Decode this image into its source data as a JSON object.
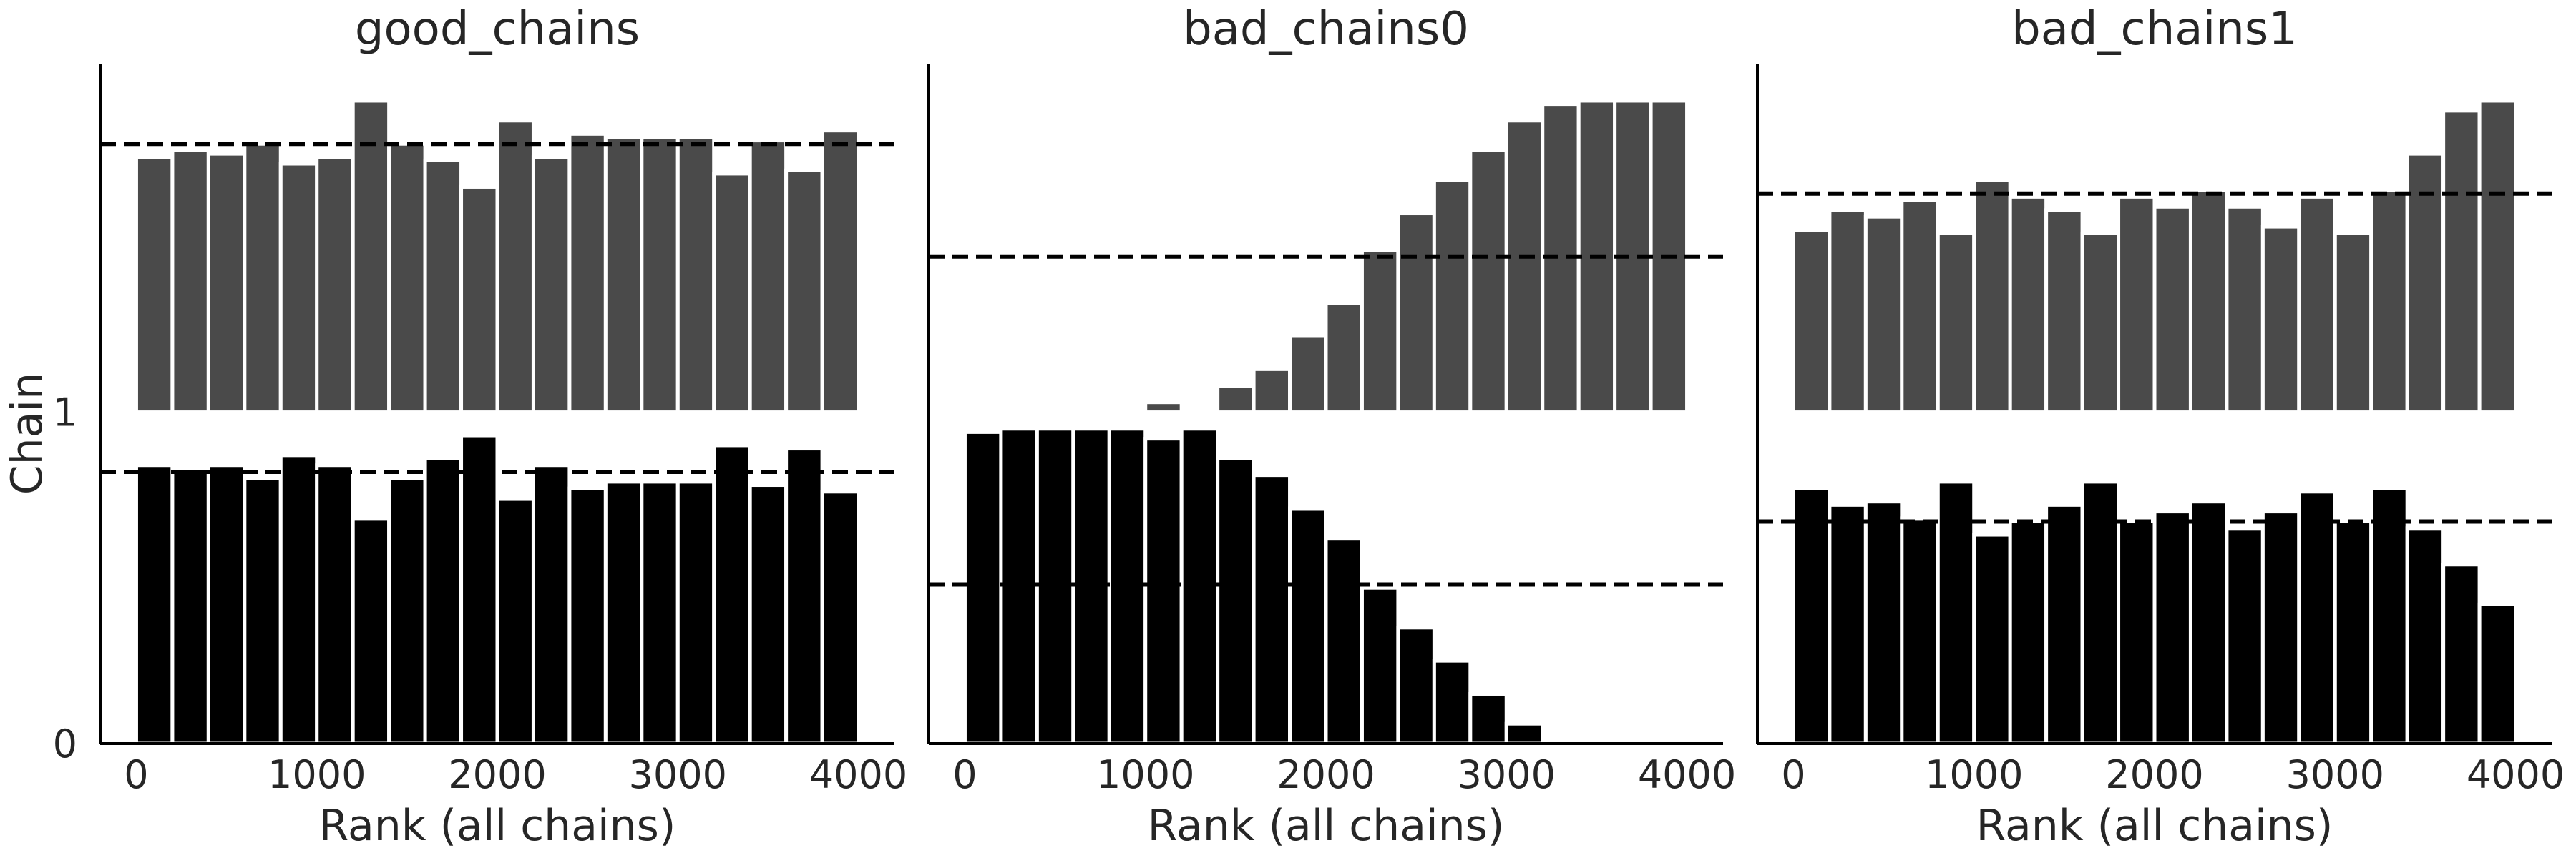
{
  "chart_data": {
    "type": "bar",
    "ylabel": "Chain",
    "yticks": [
      0,
      1
    ],
    "xticks": [
      0,
      1000,
      2000,
      3000,
      4000
    ],
    "xlim": [
      -200,
      4200
    ],
    "ylim": [
      0,
      2.05
    ],
    "bin_width": 200,
    "bin_starts": [
      0,
      200,
      400,
      600,
      800,
      1000,
      1200,
      1400,
      1600,
      1800,
      2000,
      2200,
      2400,
      2600,
      2800,
      3000,
      3200,
      3400,
      3600,
      3800
    ],
    "chain_colors": [
      "#000000",
      "#4a4a4a"
    ],
    "panels": [
      {
        "title": "good_chains",
        "xlabel": "Rank (all chains)",
        "reference_levels": [
          0.82,
          1.81
        ],
        "chains": [
          {
            "chain": 0,
            "offset": 0,
            "heights": [
              0.84,
              0.83,
              0.84,
              0.8,
              0.87,
              0.84,
              0.68,
              0.8,
              0.86,
              0.93,
              0.74,
              0.84,
              0.77,
              0.79,
              0.79,
              0.79,
              0.9,
              0.78,
              0.89,
              0.76
            ]
          },
          {
            "chain": 1,
            "offset": 1,
            "heights": [
              0.77,
              0.79,
              0.78,
              0.81,
              0.75,
              0.77,
              0.94,
              0.81,
              0.76,
              0.68,
              0.88,
              0.77,
              0.84,
              0.83,
              0.83,
              0.83,
              0.72,
              0.82,
              0.73,
              0.85
            ]
          }
        ]
      },
      {
        "title": "bad_chains0",
        "xlabel": "Rank (all chains)",
        "reference_levels": [
          0.48,
          1.47
        ],
        "chains": [
          {
            "chain": 0,
            "offset": 0,
            "heights": [
              0.94,
              0.95,
              0.95,
              0.95,
              0.95,
              0.92,
              0.95,
              0.86,
              0.81,
              0.71,
              0.62,
              0.47,
              0.35,
              0.25,
              0.15,
              0.06,
              0,
              0,
              0,
              0
            ]
          },
          {
            "chain": 1,
            "offset": 1,
            "heights": [
              0,
              0,
              0,
              0,
              0,
              0.03,
              0,
              0.08,
              0.13,
              0.23,
              0.33,
              0.49,
              0.6,
              0.7,
              0.79,
              0.88,
              0.93,
              0.94,
              0.94,
              0.94
            ]
          }
        ]
      },
      {
        "title": "bad_chains1",
        "xlabel": "Rank (all chains)",
        "reference_levels": [
          0.67,
          1.66
        ],
        "chains": [
          {
            "chain": 0,
            "offset": 0,
            "heights": [
              0.77,
              0.72,
              0.73,
              0.68,
              0.79,
              0.63,
              0.67,
              0.72,
              0.79,
              0.67,
              0.7,
              0.73,
              0.65,
              0.7,
              0.76,
              0.67,
              0.77,
              0.65,
              0.54,
              0.42
            ]
          },
          {
            "chain": 1,
            "offset": 1,
            "heights": [
              0.55,
              0.61,
              0.59,
              0.64,
              0.54,
              0.7,
              0.65,
              0.61,
              0.54,
              0.65,
              0.62,
              0.67,
              0.62,
              0.56,
              0.65,
              0.54,
              0.67,
              0.78,
              0.91,
              0.94
            ]
          }
        ]
      }
    ]
  }
}
